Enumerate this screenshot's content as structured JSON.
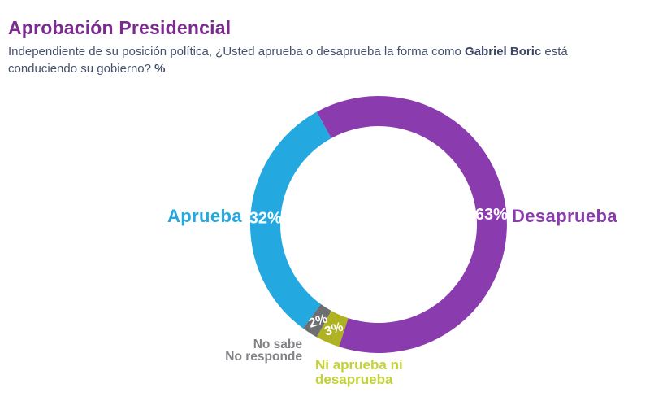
{
  "header": {
    "title": "Aprobación Presidencial",
    "subtitle_part1": "Independiente de su posición política, ¿Usted aprueba o desaprueba la forma como ",
    "subtitle_bold": "Gabriel Boric",
    "subtitle_part2": " está conduciendo su gobierno? ",
    "subtitle_percent": "%"
  },
  "colors": {
    "title": "#7B2B8F",
    "subtitle_text": "#46516B",
    "background": "#FFFFFF",
    "percent_label_text": "#FFFFFF"
  },
  "chart_data": {
    "type": "pie",
    "subtype": "donut",
    "title": "Aprobación Presidencial",
    "units": "%",
    "direction": "clockwise",
    "start_angle_deg": -28.8,
    "slices": [
      {
        "name": "Desaprueba",
        "value": 63,
        "color": "#8A3CAE"
      },
      {
        "name": "Ni aprueba ni desaprueba",
        "value": 3,
        "color": "#AFB321"
      },
      {
        "name": "No sabe No responde",
        "value": 2,
        "color": "#6D6E71"
      },
      {
        "name": "Aprueba",
        "value": 32,
        "color": "#24A8E0"
      }
    ],
    "labels": {
      "aprueba": "Aprueba",
      "desaprueba": "Desaprueba",
      "no_sabe_line1": "No sabe",
      "no_sabe_line2": "No responde",
      "ni_aprueba_line1": "Ni aprueba ni",
      "ni_aprueba_line2": "desaprueba"
    },
    "label_colors": {
      "aprueba": "#24A8E0",
      "desaprueba": "#8A3CAE",
      "no_sabe": "#808285",
      "ni_aprueba": "#C3D236"
    }
  }
}
